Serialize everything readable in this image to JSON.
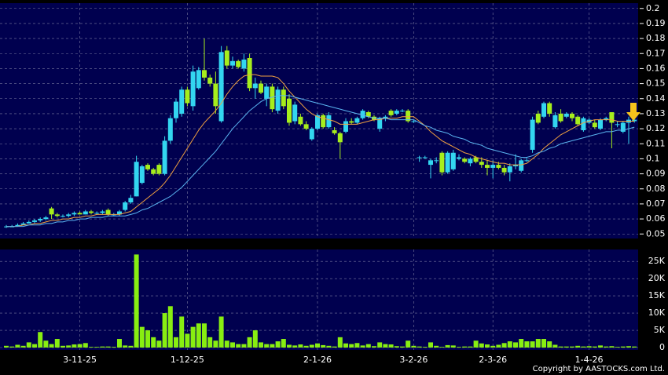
{
  "chart_data": {
    "type": "candlestick",
    "up_color": "#33d6f0",
    "down_color": "#a6ee1c",
    "categories": [
      null,
      null,
      null,
      null,
      null,
      null,
      null,
      null,
      null,
      null,
      null,
      null,
      null,
      "3-11-25",
      null,
      null,
      null,
      null,
      null,
      null,
      null,
      null,
      null,
      null,
      null,
      null,
      null,
      null,
      null,
      null,
      null,
      null,
      "1-12-25",
      null,
      null,
      null,
      null,
      null,
      null,
      null,
      null,
      null,
      null,
      null,
      null,
      null,
      null,
      null,
      null,
      null,
      null,
      null,
      null,
      null,
      null,
      "2-1-26",
      null,
      null,
      null,
      null,
      null,
      null,
      null,
      null,
      null,
      null,
      null,
      null,
      null,
      null,
      null,
      null,
      "3-2-26",
      null,
      null,
      null,
      null,
      null,
      null,
      null,
      null,
      null,
      null,
      null,
      null,
      null,
      "2-3-26",
      null,
      null,
      null,
      null,
      null,
      null,
      null,
      null,
      null,
      null,
      null,
      null,
      null,
      null,
      null,
      null,
      "1-4-26",
      null,
      null,
      null,
      null,
      null,
      null,
      null,
      null
    ],
    "open": [
      0.055,
      0.055,
      0.055,
      0.056,
      0.057,
      0.058,
      0.059,
      0.06,
      0.067,
      0.063,
      0.062,
      0.062,
      0.063,
      0.064,
      0.063,
      0.065,
      0.064,
      0.064,
      0.066,
      0.063,
      0.063,
      0.066,
      0.071,
      0.075,
      0.084,
      0.096,
      0.093,
      0.096,
      0.09,
      0.112,
      0.127,
      0.13,
      0.146,
      0.135,
      0.147,
      0.159,
      0.154,
      0.15,
      0.125,
      0.172,
      0.162,
      0.165,
      0.16,
      0.167,
      0.147,
      0.15,
      0.14,
      0.148,
      0.132,
      0.146,
      0.14,
      0.125,
      0.128,
      0.123,
      0.113,
      0.12,
      0.129,
      0.121,
      0.119,
      0.117,
      0.118,
      0.125,
      0.124,
      0.127,
      0.131,
      0.128,
      0.12,
      0.127,
      0.132,
      0.13,
      0.132,
      0.132,
      0.125,
      0.101,
      0.101,
      0.096,
      0.099,
      0.104,
      0.091,
      0.093,
      0.1,
      0.1,
      0.097,
      0.101,
      0.098,
      0.096,
      0.094,
      0.096,
      0.094,
      0.091,
      0.095,
      0.092,
      0.099,
      0.106,
      0.13,
      0.128,
      0.137,
      0.121,
      0.13,
      0.128,
      0.13,
      0.128,
      0.119,
      0.124,
      0.124,
      0.12,
      0.126,
      0.131,
      0.123,
      0.118,
      0.124,
      0.125
    ],
    "high": [
      0.056,
      0.056,
      0.057,
      0.058,
      0.059,
      0.06,
      0.061,
      0.062,
      0.068,
      0.064,
      0.063,
      0.064,
      0.065,
      0.065,
      0.066,
      0.066,
      0.065,
      0.066,
      0.067,
      0.064,
      0.066,
      0.072,
      0.076,
      0.102,
      0.096,
      0.097,
      0.094,
      0.097,
      0.115,
      0.129,
      0.14,
      0.148,
      0.148,
      0.162,
      0.161,
      0.18,
      0.156,
      0.158,
      0.175,
      0.175,
      0.168,
      0.166,
      0.17,
      0.17,
      0.154,
      0.152,
      0.15,
      0.15,
      0.148,
      0.148,
      0.143,
      0.138,
      0.13,
      0.125,
      0.121,
      0.13,
      0.13,
      0.131,
      0.121,
      0.118,
      0.127,
      0.127,
      0.128,
      0.133,
      0.132,
      0.129,
      0.128,
      0.129,
      0.133,
      0.133,
      0.133,
      0.133,
      0.126,
      0.102,
      0.102,
      0.1,
      0.101,
      0.105,
      0.105,
      0.106,
      0.103,
      0.101,
      0.101,
      0.102,
      0.101,
      0.099,
      0.099,
      0.098,
      0.096,
      0.097,
      0.103,
      0.1,
      0.101,
      0.128,
      0.132,
      0.138,
      0.138,
      0.131,
      0.133,
      0.131,
      0.131,
      0.129,
      0.128,
      0.127,
      0.126,
      0.127,
      0.128,
      0.131,
      0.125,
      0.125,
      0.128,
      0.127
    ],
    "low": [
      0.054,
      0.055,
      0.055,
      0.056,
      0.057,
      0.057,
      0.058,
      0.059,
      0.06,
      0.061,
      0.061,
      0.061,
      0.062,
      0.063,
      0.063,
      0.063,
      0.063,
      0.063,
      0.062,
      0.062,
      0.062,
      0.065,
      0.07,
      0.075,
      0.083,
      0.092,
      0.089,
      0.089,
      0.089,
      0.11,
      0.124,
      0.128,
      0.135,
      0.132,
      0.146,
      0.152,
      0.148,
      0.13,
      0.124,
      0.16,
      0.16,
      0.16,
      0.158,
      0.145,
      0.14,
      0.143,
      0.135,
      0.131,
      0.13,
      0.133,
      0.122,
      0.123,
      0.122,
      0.119,
      0.112,
      0.119,
      0.12,
      0.12,
      0.116,
      0.1,
      0.117,
      0.123,
      0.123,
      0.126,
      0.127,
      0.125,
      0.118,
      0.125,
      0.128,
      0.129,
      0.131,
      0.124,
      0.124,
      0.098,
      0.1,
      0.087,
      0.097,
      0.089,
      0.09,
      0.092,
      0.099,
      0.097,
      0.095,
      0.097,
      0.094,
      0.089,
      0.087,
      0.093,
      0.089,
      0.085,
      0.093,
      0.091,
      0.098,
      0.104,
      0.123,
      0.127,
      0.128,
      0.12,
      0.124,
      0.127,
      0.125,
      0.122,
      0.118,
      0.123,
      0.12,
      0.119,
      0.125,
      0.107,
      0.121,
      0.117,
      0.11,
      0.124
    ],
    "close": [
      0.055,
      0.055,
      0.056,
      0.057,
      0.058,
      0.059,
      0.06,
      0.061,
      0.063,
      0.062,
      0.062,
      0.063,
      0.064,
      0.063,
      0.065,
      0.064,
      0.064,
      0.065,
      0.063,
      0.063,
      0.065,
      0.071,
      0.074,
      0.098,
      0.095,
      0.093,
      0.09,
      0.09,
      0.112,
      0.127,
      0.138,
      0.146,
      0.137,
      0.158,
      0.159,
      0.154,
      0.15,
      0.135,
      0.171,
      0.162,
      0.165,
      0.161,
      0.166,
      0.147,
      0.15,
      0.144,
      0.148,
      0.133,
      0.146,
      0.135,
      0.124,
      0.136,
      0.123,
      0.12,
      0.12,
      0.129,
      0.121,
      0.129,
      0.117,
      0.111,
      0.125,
      0.124,
      0.127,
      0.132,
      0.128,
      0.126,
      0.127,
      0.128,
      0.129,
      0.132,
      0.132,
      0.125,
      0.125,
      0.101,
      0.101,
      0.099,
      0.099,
      0.091,
      0.104,
      0.104,
      0.101,
      0.098,
      0.1,
      0.098,
      0.096,
      0.094,
      0.096,
      0.094,
      0.091,
      0.095,
      0.096,
      0.099,
      0.099,
      0.126,
      0.124,
      0.137,
      0.13,
      0.129,
      0.125,
      0.13,
      0.127,
      0.123,
      0.127,
      0.126,
      0.121,
      0.126,
      0.127,
      0.124,
      0.123,
      0.124,
      0.126,
      0.126
    ],
    "lines": [
      {
        "color": "#f0a040",
        "values": [
          0.055,
          0.055,
          0.055,
          0.056,
          0.056,
          0.057,
          0.057,
          0.058,
          0.059,
          0.059,
          0.06,
          0.06,
          0.061,
          0.061,
          0.062,
          0.062,
          0.063,
          0.063,
          0.063,
          0.063,
          0.063,
          0.064,
          0.065,
          0.068,
          0.071,
          0.074,
          0.077,
          0.08,
          0.084,
          0.089,
          0.095,
          0.101,
          0.107,
          0.113,
          0.119,
          0.124,
          0.128,
          0.132,
          0.137,
          0.143,
          0.148,
          0.152,
          0.155,
          0.156,
          0.156,
          0.155,
          0.155,
          0.155,
          0.154,
          0.15,
          0.145,
          0.141,
          0.137,
          0.133,
          0.13,
          0.128,
          0.127,
          0.126,
          0.125,
          0.123,
          0.123,
          0.123,
          0.123,
          0.124,
          0.125,
          0.126,
          0.126,
          0.127,
          0.127,
          0.127,
          0.128,
          0.128,
          0.128,
          0.125,
          0.122,
          0.118,
          0.115,
          0.112,
          0.11,
          0.108,
          0.106,
          0.104,
          0.103,
          0.101,
          0.1,
          0.099,
          0.098,
          0.097,
          0.097,
          0.096,
          0.096,
          0.096,
          0.097,
          0.1,
          0.103,
          0.107,
          0.11,
          0.113,
          0.116,
          0.118,
          0.12,
          0.122,
          0.124,
          0.125,
          0.126,
          0.126,
          0.126,
          0.126,
          0.125,
          0.125,
          0.125,
          0.125
        ]
      },
      {
        "color": "#5ab4f0",
        "values": [
          0.055,
          0.055,
          0.055,
          0.055,
          0.056,
          0.056,
          0.056,
          0.057,
          0.057,
          0.058,
          0.058,
          0.059,
          0.059,
          0.06,
          0.06,
          0.061,
          0.061,
          0.061,
          0.062,
          0.062,
          0.062,
          0.062,
          0.063,
          0.064,
          0.066,
          0.067,
          0.069,
          0.071,
          0.073,
          0.075,
          0.078,
          0.081,
          0.085,
          0.089,
          0.093,
          0.097,
          0.101,
          0.105,
          0.11,
          0.115,
          0.12,
          0.124,
          0.128,
          0.132,
          0.135,
          0.138,
          0.14,
          0.141,
          0.142,
          0.142,
          0.142,
          0.141,
          0.14,
          0.139,
          0.138,
          0.137,
          0.136,
          0.135,
          0.134,
          0.133,
          0.132,
          0.131,
          0.13,
          0.129,
          0.128,
          0.127,
          0.127,
          0.127,
          0.126,
          0.126,
          0.126,
          0.126,
          0.126,
          0.124,
          0.122,
          0.121,
          0.119,
          0.118,
          0.117,
          0.115,
          0.114,
          0.113,
          0.111,
          0.11,
          0.109,
          0.107,
          0.106,
          0.105,
          0.104,
          0.103,
          0.102,
          0.101,
          0.101,
          0.102,
          0.104,
          0.105,
          0.107,
          0.108,
          0.11,
          0.111,
          0.112,
          0.113,
          0.114,
          0.115,
          0.116,
          0.117,
          0.118,
          0.118,
          0.119,
          0.119,
          0.12,
          0.121
        ]
      }
    ],
    "ylim": [
      0.047,
      0.203
    ],
    "yticks": [
      0.05,
      0.06,
      0.07,
      0.08,
      0.09,
      0.1,
      0.11,
      0.12,
      0.13,
      0.14,
      0.15,
      0.16,
      0.17,
      0.18,
      0.19,
      0.2
    ],
    "volume": {
      "color": "#88ee11",
      "values": [
        500,
        300,
        800,
        500,
        1500,
        1000,
        4500,
        2000,
        1000,
        2500,
        500,
        600,
        900,
        1000,
        1300,
        200,
        200,
        300,
        300,
        200,
        2500,
        600,
        500,
        27000,
        6000,
        5000,
        3000,
        2000,
        10000,
        12000,
        3000,
        9000,
        4000,
        6000,
        7000,
        7000,
        3000,
        2000,
        9000,
        2000,
        1500,
        1000,
        1000,
        3000,
        5000,
        1500,
        1000,
        1000,
        1800,
        2500,
        800,
        600,
        900,
        500,
        800,
        1200,
        700,
        500,
        300,
        3000,
        1200,
        1000,
        1300,
        600,
        1000,
        400,
        1500,
        1000,
        900,
        400,
        300,
        2000,
        500,
        300,
        200,
        1500,
        500,
        200,
        700,
        600,
        200,
        300,
        300,
        2000,
        1200,
        900,
        500,
        800,
        1300,
        1800,
        1500,
        2500,
        1800,
        1800,
        2500,
        2500,
        1800,
        800,
        300,
        300,
        300,
        500,
        300,
        400,
        300,
        600,
        300,
        400,
        200,
        300,
        400,
        300
      ],
      "ylim": [
        0,
        28000
      ],
      "yticks": [
        0,
        {
          "value": 5000,
          "label": "5K"
        },
        {
          "value": 10000,
          "label": "10K"
        },
        {
          "value": 15000,
          "label": "15K"
        },
        {
          "value": 20000,
          "label": "20K"
        },
        {
          "value": 25000,
          "label": "25K"
        }
      ]
    },
    "copyright": "Copyright by AASTOCKS.com Ltd."
  }
}
